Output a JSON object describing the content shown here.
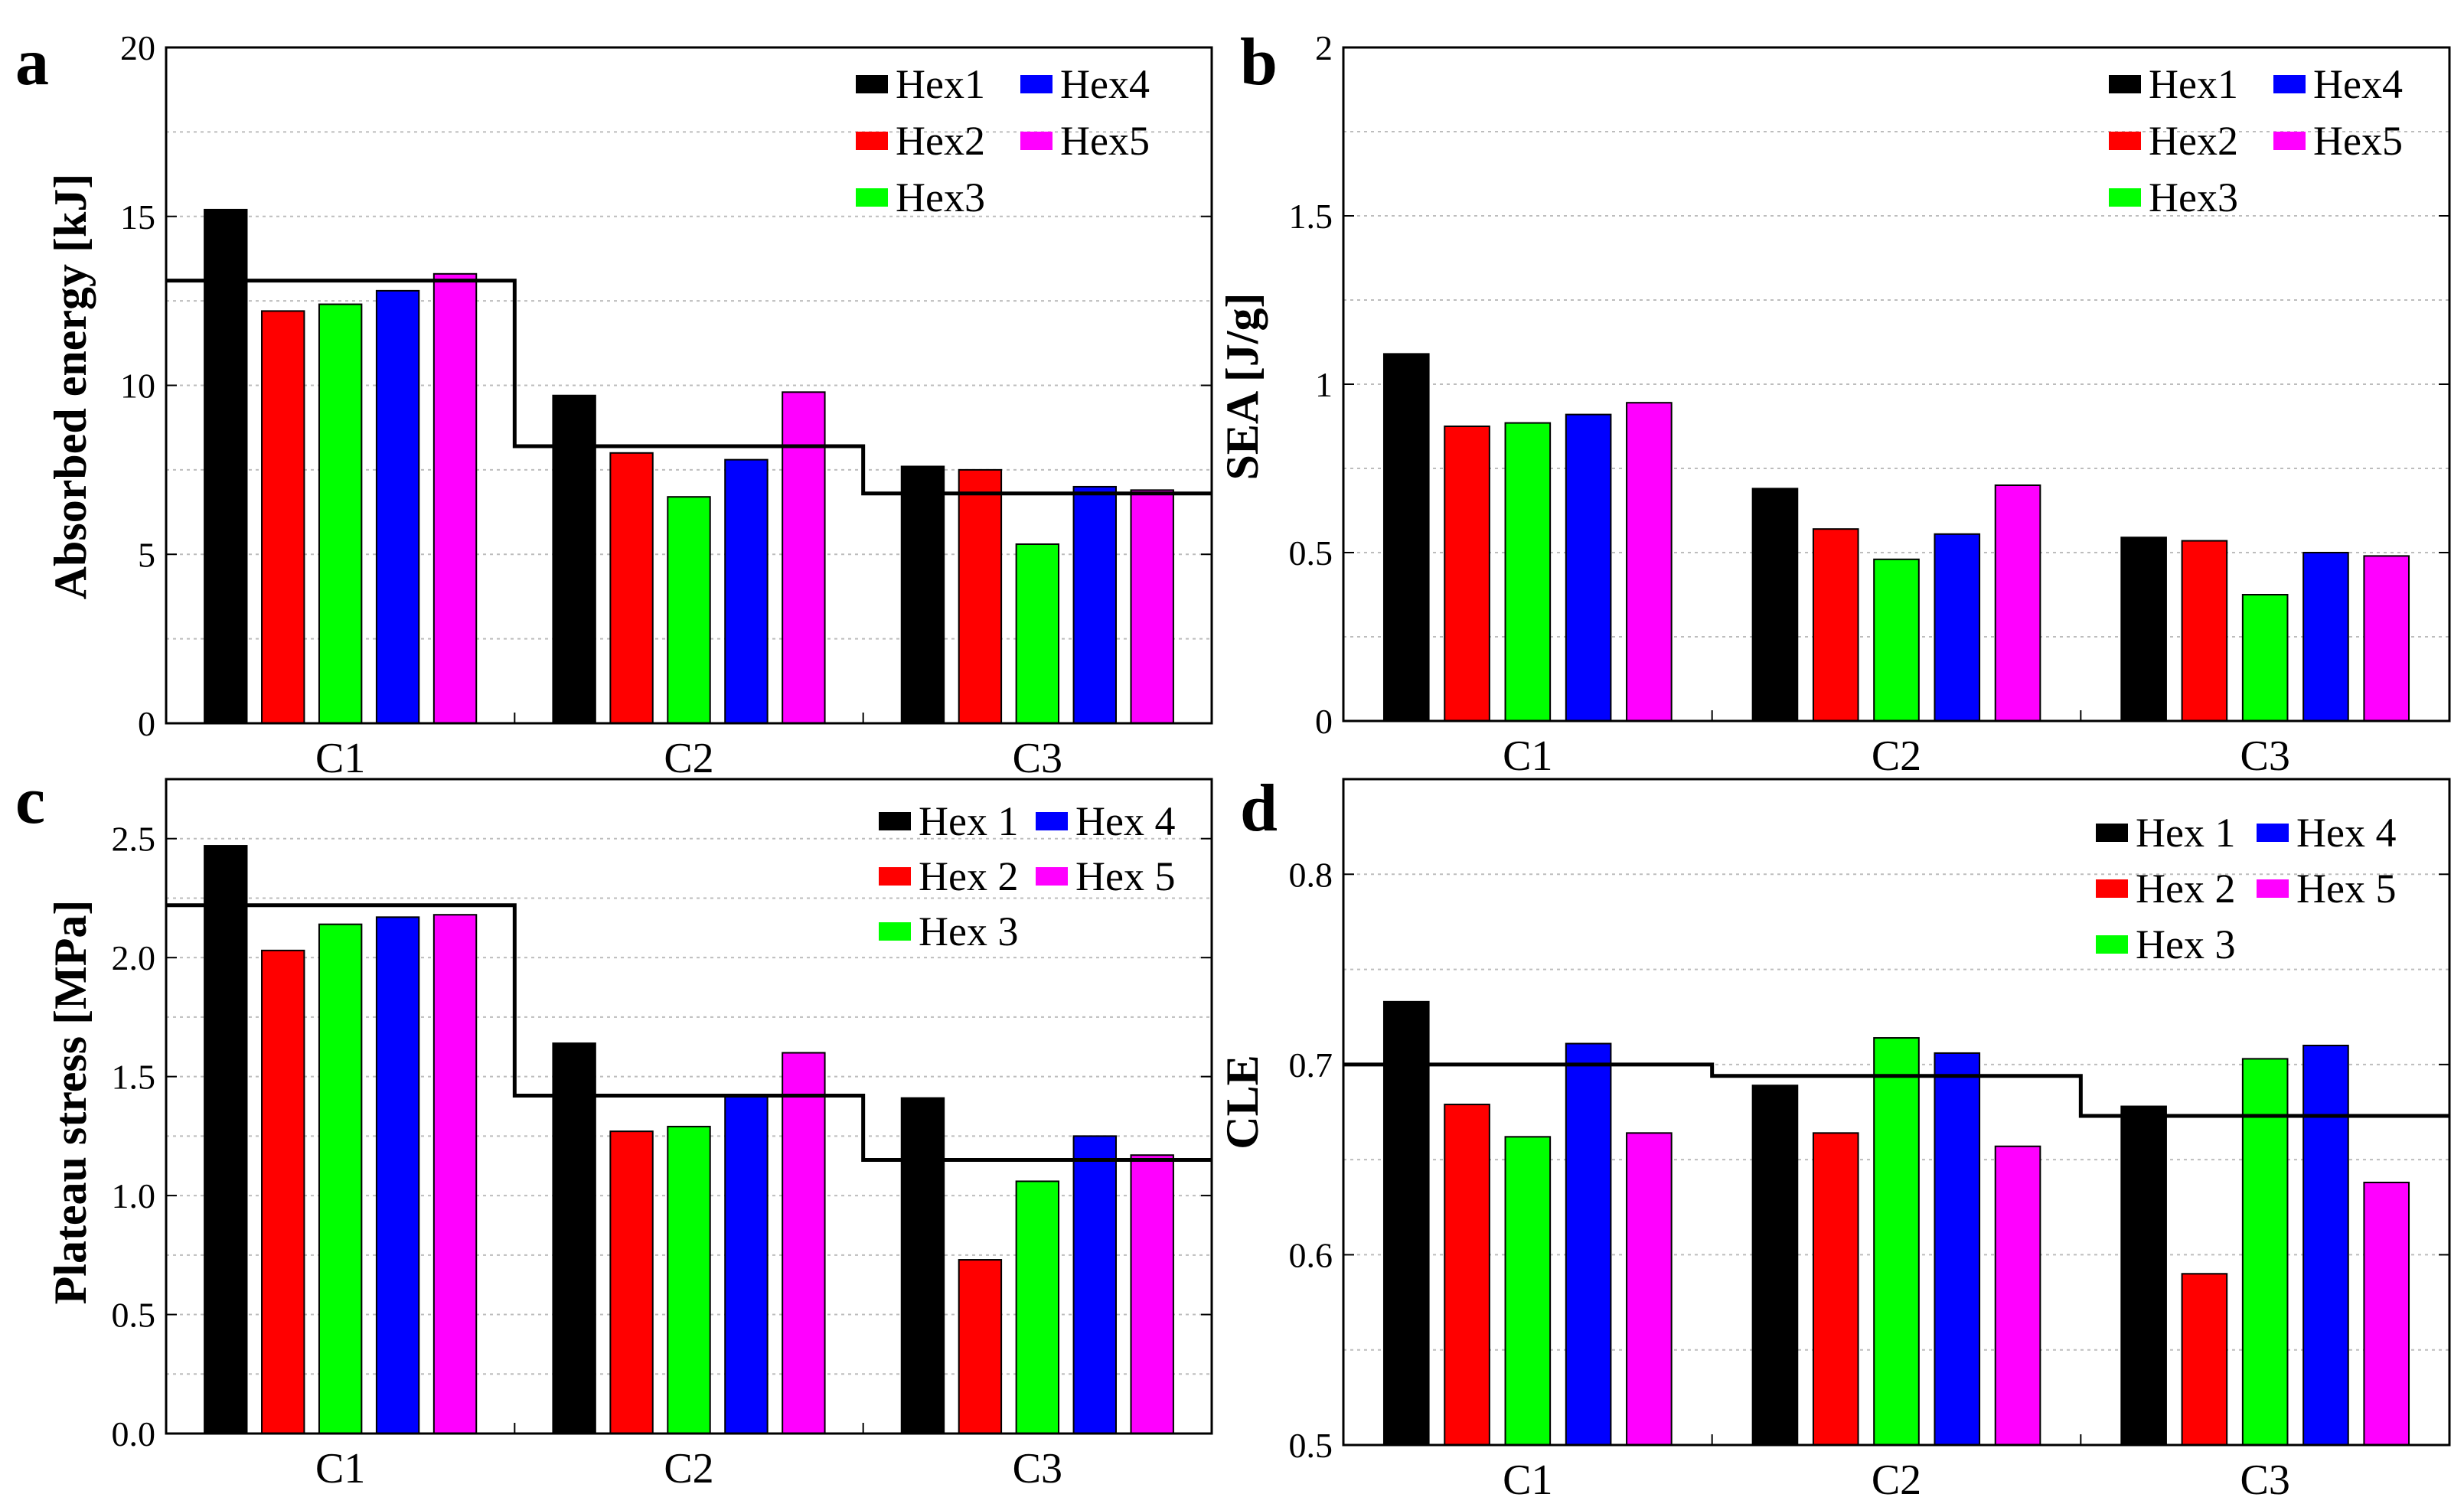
{
  "colors": {
    "Hex1": "#000000",
    "Hex2": "#ff0000",
    "Hex3": "#00ff00",
    "Hex4": "#0000ff",
    "Hex5": "#ff00ff",
    "grid": "#bdbdbd",
    "frame": "#000000"
  },
  "chart_data": [
    {
      "panel_letter": "a",
      "type": "bar",
      "categories": [
        "C1",
        "C2",
        "C3"
      ],
      "ylabel": "Absorbed energy [kJ]",
      "ylim": [
        0,
        20
      ],
      "yticks": [
        "0",
        "5",
        "10",
        "15",
        "20"
      ],
      "grid": true,
      "legend_placement": "top-right",
      "series": [
        {
          "name": "Hex1",
          "values": [
            15.2,
            9.7,
            7.6
          ]
        },
        {
          "name": "Hex2",
          "values": [
            12.2,
            8.0,
            7.5
          ]
        },
        {
          "name": "Hex3",
          "values": [
            12.4,
            6.7,
            5.3
          ]
        },
        {
          "name": "Hex4",
          "values": [
            12.8,
            7.8,
            7.0
          ]
        },
        {
          "name": "Hex5",
          "values": [
            13.3,
            9.8,
            6.9
          ]
        }
      ],
      "average_line": [
        13.1,
        8.2,
        6.8
      ]
    },
    {
      "panel_letter": "b",
      "type": "bar",
      "categories": [
        "C1",
        "C2",
        "C3"
      ],
      "ylabel": "SEA [J/g]",
      "ylim": [
        0,
        2
      ],
      "yticks": [
        "0",
        "0.5",
        "1",
        "1.5",
        "2"
      ],
      "grid": true,
      "legend_placement": "top-right",
      "series": [
        {
          "name": "Hex1",
          "values": [
            1.09,
            0.69,
            0.545
          ]
        },
        {
          "name": "Hex2",
          "values": [
            0.875,
            0.57,
            0.535
          ]
        },
        {
          "name": "Hex3",
          "values": [
            0.885,
            0.48,
            0.375
          ]
        },
        {
          "name": "Hex4",
          "values": [
            0.91,
            0.555,
            0.5
          ]
        },
        {
          "name": "Hex5",
          "values": [
            0.945,
            0.7,
            0.49
          ]
        }
      ]
    },
    {
      "panel_letter": "c",
      "type": "bar",
      "categories": [
        "C1",
        "C2",
        "C3"
      ],
      "ylabel": "Plateau stress [MPa]",
      "ylim": [
        0,
        2.75
      ],
      "yticks": [
        "0.0",
        "0.5",
        "1.0",
        "1.5",
        "2.0",
        "2.5"
      ],
      "grid": true,
      "legend_placement": "top-right",
      "series": [
        {
          "name": "Hex 1",
          "values": [
            2.47,
            1.64,
            1.41
          ]
        },
        {
          "name": "Hex 2",
          "values": [
            2.03,
            1.27,
            0.73
          ]
        },
        {
          "name": "Hex 3",
          "values": [
            2.14,
            1.29,
            1.06
          ]
        },
        {
          "name": "Hex 4",
          "values": [
            2.17,
            1.42,
            1.25
          ]
        },
        {
          "name": "Hex 5",
          "values": [
            2.18,
            1.6,
            1.17
          ]
        }
      ],
      "average_line": [
        2.22,
        1.42,
        1.15
      ]
    },
    {
      "panel_letter": "d",
      "type": "bar",
      "categories": [
        "C1",
        "C2",
        "C3"
      ],
      "ylabel": "CLE",
      "ylim": [
        0.5,
        0.85
      ],
      "yticks": [
        "0.5",
        "0.6",
        "0.7",
        "0.8"
      ],
      "grid": true,
      "legend_placement": "top-right",
      "series": [
        {
          "name": "Hex 1",
          "values": [
            0.733,
            0.689,
            0.678
          ]
        },
        {
          "name": "Hex 2",
          "values": [
            0.679,
            0.664,
            0.59
          ]
        },
        {
          "name": "Hex 3",
          "values": [
            0.662,
            0.714,
            0.703
          ]
        },
        {
          "name": "Hex 4",
          "values": [
            0.711,
            0.706,
            0.71
          ]
        },
        {
          "name": "Hex 5",
          "values": [
            0.664,
            0.657,
            0.638
          ]
        }
      ],
      "average_line": [
        0.7,
        0.694,
        0.673
      ]
    }
  ]
}
